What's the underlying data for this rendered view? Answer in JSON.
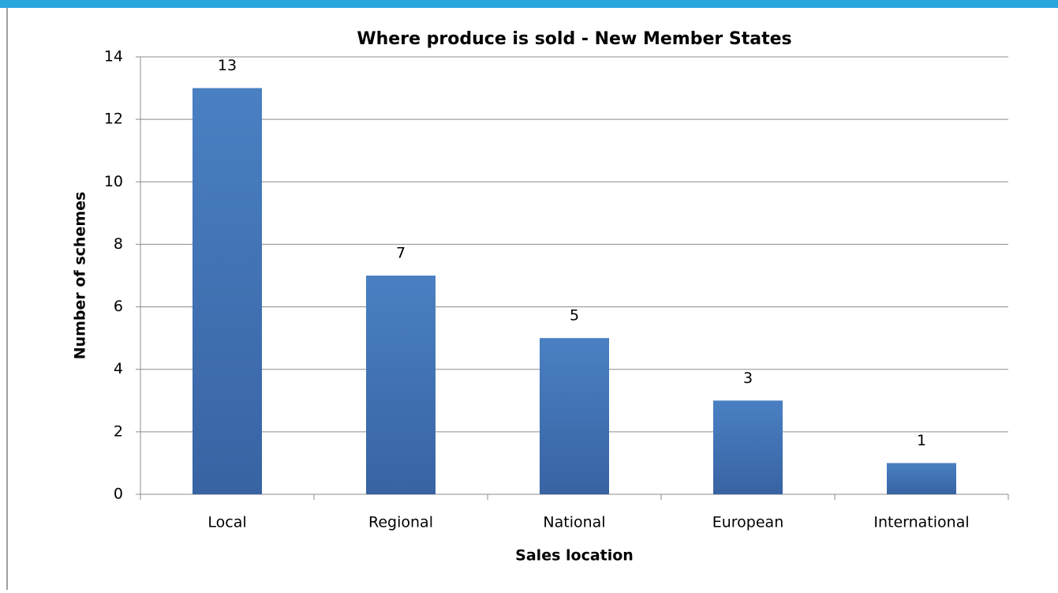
{
  "chart_data": {
    "type": "bar",
    "title": "Where produce is sold - New Member States",
    "x_label": "Sales location",
    "y_label": "Number of schemes",
    "categories": [
      "Local",
      "Regional",
      "National",
      "European",
      "International"
    ],
    "values": [
      13,
      7,
      5,
      3,
      1
    ],
    "color": "#4677b8",
    "ylim": [
      0,
      14
    ],
    "yticks": [
      0,
      2,
      4,
      6,
      8,
      10,
      12,
      14
    ],
    "grid": true
  }
}
